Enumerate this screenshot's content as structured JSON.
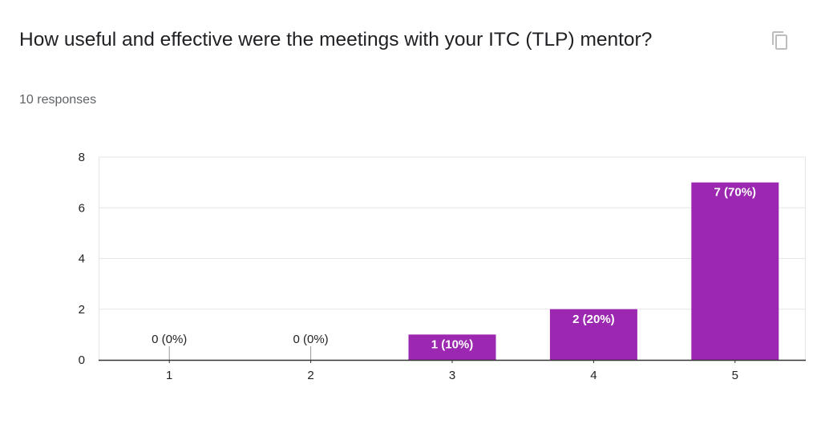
{
  "question": {
    "title": "How useful and effective were the meetings with your ITC (TLP) mentor?",
    "response_count": "10 responses",
    "copy_icon": "copy-icon"
  },
  "colors": {
    "bar": "#9c27b0",
    "grid": "#e6e6e6",
    "axis": "#333333"
  },
  "chart_data": {
    "type": "bar",
    "title": "",
    "xlabel": "",
    "ylabel": "",
    "categories": [
      "1",
      "2",
      "3",
      "4",
      "5"
    ],
    "values": [
      0,
      0,
      1,
      2,
      7
    ],
    "data_labels": [
      "0 (0%)",
      "0 (0%)",
      "1 (10%)",
      "2 (20%)",
      "7 (70%)"
    ],
    "ylim": [
      0,
      8
    ],
    "yticks": [
      0,
      2,
      4,
      6,
      8
    ],
    "grid": true
  }
}
